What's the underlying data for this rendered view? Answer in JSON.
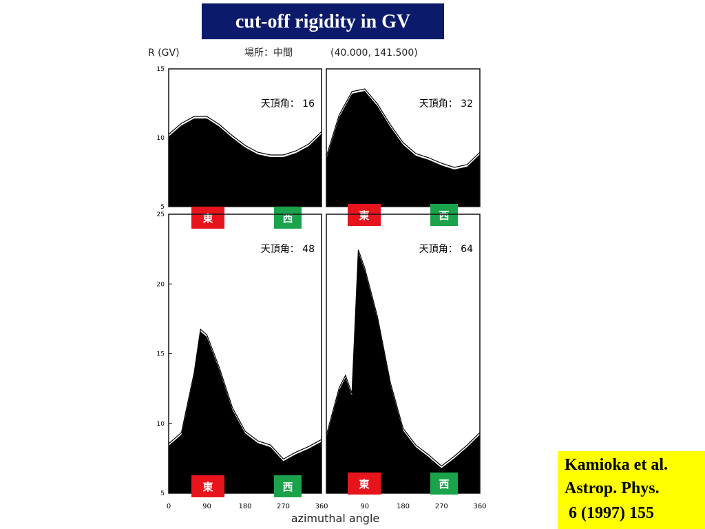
{
  "slide": {
    "title": "cut-off  rigidity  in GV",
    "citation": [
      "Kamioka et al.",
      "Astrop. Phys.",
      " 6 (1997) 155"
    ]
  },
  "figure": {
    "y_unit": "R (GV)",
    "location": "場所：中間",
    "coordinates": "(40.000, 141.500)",
    "x_label": "azimuthal angle",
    "east_label": "東",
    "west_label": "西"
  },
  "chart_data": [
    {
      "type": "area",
      "annotation": "天頂角： 16",
      "color": "#000000",
      "xlim": [
        0,
        360
      ],
      "ylim": [
        5,
        15
      ],
      "yticks": [
        5,
        10,
        15
      ],
      "x": [
        0,
        30,
        60,
        90,
        120,
        150,
        180,
        210,
        240,
        270,
        300,
        330,
        360
      ],
      "values": [
        10.1,
        10.9,
        11.4,
        11.4,
        10.8,
        10.0,
        9.3,
        8.8,
        8.6,
        8.6,
        8.9,
        9.4,
        10.3
      ]
    },
    {
      "type": "area",
      "annotation": "天頂角： 32",
      "color": "#000000",
      "xlim": [
        0,
        360
      ],
      "ylim": [
        5,
        15
      ],
      "x": [
        0,
        30,
        60,
        90,
        120,
        150,
        180,
        210,
        240,
        270,
        300,
        330,
        360
      ],
      "values": [
        8.5,
        11.5,
        13.2,
        13.4,
        12.3,
        10.8,
        9.5,
        8.7,
        8.4,
        8.0,
        7.7,
        7.9,
        8.8
      ]
    },
    {
      "type": "area",
      "annotation": "天頂角： 48",
      "color": "#000000",
      "xlim": [
        0,
        360
      ],
      "ylim": [
        5,
        25
      ],
      "yticks": [
        5,
        10,
        15,
        20,
        25
      ],
      "xticks": [
        0,
        90,
        180,
        270,
        360
      ],
      "x": [
        0,
        30,
        60,
        75,
        90,
        120,
        150,
        180,
        210,
        240,
        270,
        300,
        330,
        360
      ],
      "values": [
        8.4,
        9.2,
        13.5,
        16.6,
        16.2,
        13.8,
        11.0,
        9.3,
        8.6,
        8.3,
        7.3,
        7.8,
        8.2,
        8.7
      ]
    },
    {
      "type": "area",
      "annotation": "天頂角： 64",
      "color": "#000000",
      "xlim": [
        0,
        360
      ],
      "ylim": [
        5,
        25
      ],
      "xticks": [
        90,
        180,
        270,
        360
      ],
      "x": [
        0,
        30,
        45,
        60,
        75,
        90,
        120,
        150,
        180,
        210,
        240,
        270,
        300,
        330,
        360
      ],
      "values": [
        9.0,
        12.4,
        13.3,
        12.0,
        22.3,
        21.0,
        17.5,
        12.8,
        9.5,
        8.3,
        7.6,
        6.8,
        7.5,
        8.3,
        9.2
      ]
    }
  ]
}
